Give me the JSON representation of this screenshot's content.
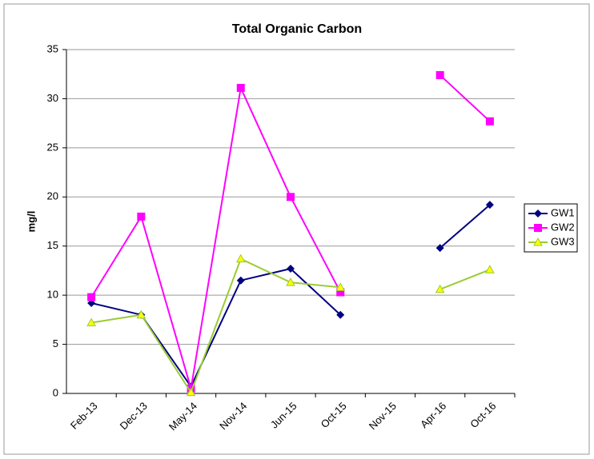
{
  "chart_data": {
    "type": "line",
    "title": "Total Organic Carbon",
    "y_label": "mg/l",
    "categories": [
      "Feb-13",
      "Dec-13",
      "May-14",
      "Nov-14",
      "Jun-15",
      "Oct-15",
      "Nov-15",
      "Apr-16",
      "Oct-16"
    ],
    "series": [
      {
        "name": "GW1",
        "color": "#000080",
        "marker": "diamond",
        "marker_color": "#000080",
        "values": [
          9.2,
          8.0,
          0.7,
          11.5,
          12.7,
          8.0,
          null,
          14.8,
          19.2
        ]
      },
      {
        "name": "GW2",
        "color": "#ff00ff",
        "marker": "square",
        "marker_color": "#ff00ff",
        "values": [
          9.8,
          18.0,
          0.5,
          31.1,
          20.0,
          10.3,
          null,
          32.4,
          27.7
        ]
      },
      {
        "name": "GW3",
        "color": "#99cc33",
        "marker": "triangle",
        "marker_color": "#ffff00",
        "values": [
          7.2,
          8.0,
          0.1,
          13.7,
          11.3,
          10.8,
          null,
          10.6,
          12.6
        ]
      }
    ],
    "ylim": [
      0,
      35
    ],
    "yticks": [
      0,
      5,
      10,
      15,
      20,
      25,
      30,
      35
    ],
    "grid": true,
    "legend": "right"
  }
}
